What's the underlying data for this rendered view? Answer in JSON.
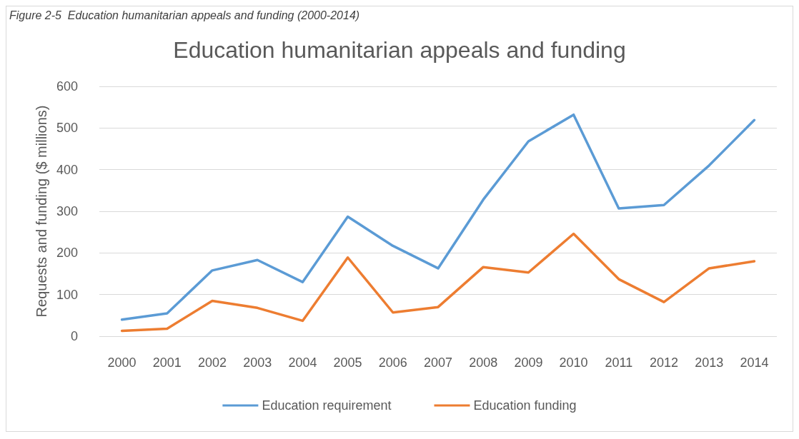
{
  "chart_data": {
    "type": "line",
    "title": "Education humanitarian appeals and funding",
    "ylabel": "Requests and funding ($ millions)",
    "annotations": [
      "Figure 2-5  Education humanitarian appeals and funding (2000-2014)"
    ],
    "categories": [
      "2000",
      "2001",
      "2002",
      "2003",
      "2004",
      "2005",
      "2006",
      "2007",
      "2008",
      "2009",
      "2010",
      "2011",
      "2012",
      "2013",
      "2014"
    ],
    "series": [
      {
        "name": "Education requirement",
        "color": "#5b9bd5",
        "values": [
          40,
          55,
          158,
          183,
          130,
          287,
          217,
          163,
          328,
          468,
          532,
          307,
          315,
          410,
          519
        ]
      },
      {
        "name": "Education funding",
        "color": "#ed7d31",
        "values": [
          13,
          18,
          85,
          68,
          37,
          189,
          57,
          70,
          166,
          153,
          246,
          137,
          82,
          163,
          180
        ]
      }
    ],
    "ylim": [
      0,
      600
    ],
    "yticks": [
      0,
      100,
      200,
      300,
      400,
      500,
      600
    ],
    "grid": "y",
    "legend": "bottom",
    "marker": "none",
    "line_style": "solid"
  }
}
